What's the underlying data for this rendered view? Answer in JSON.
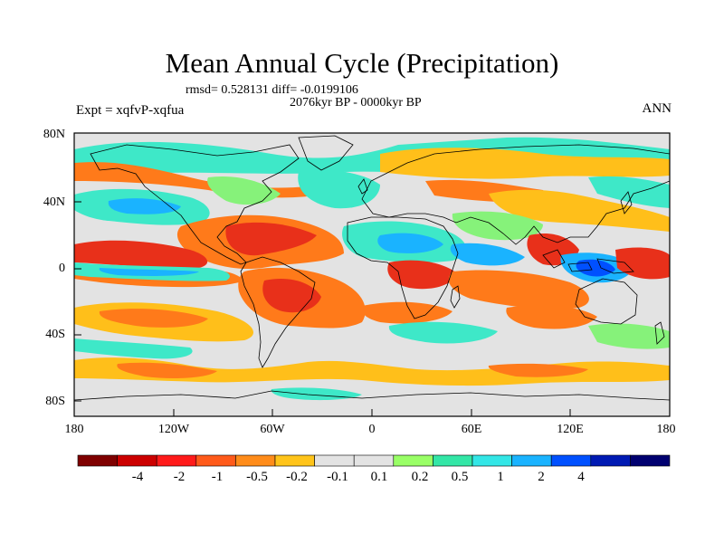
{
  "title": "Mean Annual Cycle (Precipitation)",
  "stats_line": "rmsd= 0.528131 diff= -0.0199106",
  "period_line": "2076kyr BP - 0000kyr BP",
  "experiment_label": "Expt = xqfvP-xqfua",
  "season_label": "ANN",
  "lat_labels": [
    "80N",
    "40N",
    "0",
    "40S",
    "80S"
  ],
  "lon_labels": [
    "180",
    "120W",
    "60W",
    "0",
    "60E",
    "120E",
    "180"
  ],
  "colorbar": {
    "colors": [
      "#7f0000",
      "#cc0000",
      "#ff1a1a",
      "#ff5a1a",
      "#ff8c1a",
      "#ffc41a",
      "#e3e3e3",
      "#e3e3e3",
      "#99ff66",
      "#33e6a6",
      "#33e6e6",
      "#1ab3ff",
      "#0050ff",
      "#001ab3",
      "#000070"
    ],
    "labels": [
      "-4",
      "-2",
      "-1",
      "-0.5",
      "-0.2",
      "-0.1",
      "0.1",
      "0.2",
      "0.5",
      "1",
      "2",
      "4"
    ]
  },
  "colors": {
    "ocean_bg": "#e3e3e3",
    "coast": "#000000",
    "dry_strong": "#e8301a",
    "dry": "#ff7a1a",
    "dry_light": "#ffbf1a",
    "wet_light": "#86f27a",
    "wet": "#3ee8c8",
    "wet_strong": "#1ab3ff",
    "wet_vstrong": "#0050ff"
  }
}
